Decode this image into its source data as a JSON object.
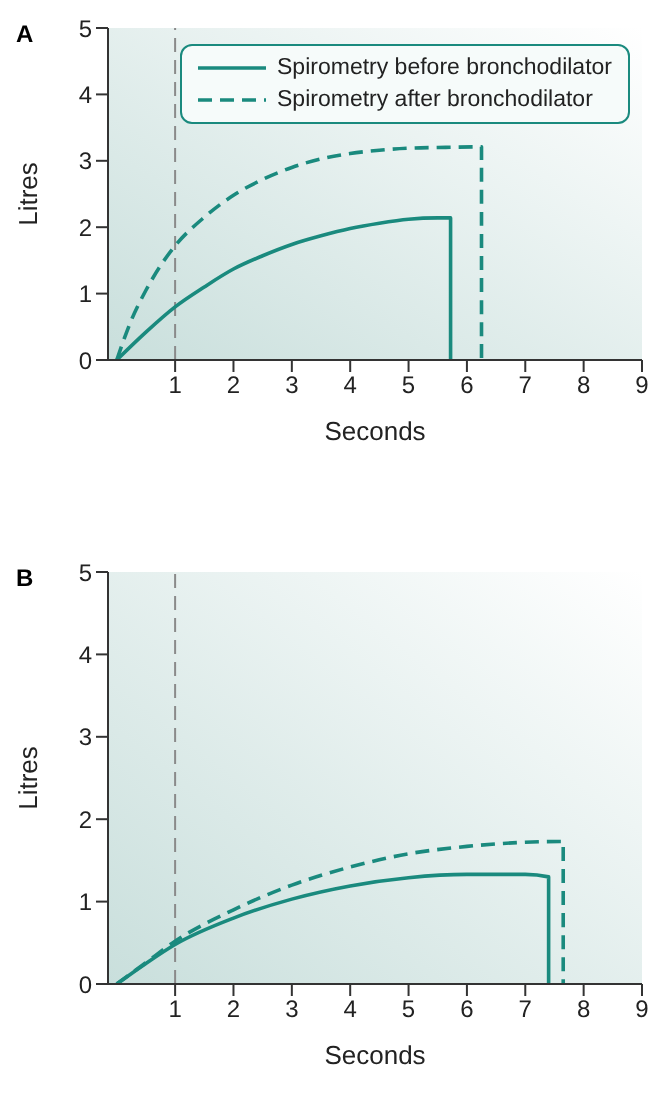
{
  "chart_data": [
    {
      "type": "line",
      "title": "A",
      "xlabel": "Seconds",
      "ylabel": "Litres",
      "xlim": [
        -0.15,
        9
      ],
      "xticks": [
        1,
        2,
        3,
        4,
        5,
        6,
        7,
        8,
        9
      ],
      "ylim": [
        0,
        5
      ],
      "yticks": [
        0,
        1,
        2,
        3,
        4,
        5
      ],
      "grid": false,
      "legend": "top right",
      "marker": "none",
      "ref_lines": [
        {
          "axis": "x",
          "value": 1,
          "color": "#8a8a8a",
          "line_style": "dashed"
        }
      ],
      "series": [
        {
          "name": "Spirometry before bronchodilator",
          "color": "#1a8a7e",
          "line_style": "solid",
          "x": [
            0,
            0.5,
            1,
            1.5,
            2,
            2.5,
            3,
            3.5,
            4,
            4.5,
            5,
            5.5,
            5.72,
            5.72
          ],
          "values": [
            0,
            0.42,
            0.8,
            1.1,
            1.37,
            1.57,
            1.74,
            1.87,
            1.98,
            2.06,
            2.12,
            2.14,
            2.14,
            0
          ]
        },
        {
          "name": "Spirometry after bronchodilator",
          "color": "#1a8a7e",
          "line_style": "dashed",
          "x": [
            0,
            0.25,
            0.5,
            0.75,
            1,
            1.5,
            2,
            2.5,
            3,
            3.5,
            4,
            4.5,
            5,
            5.5,
            6.25,
            6.25
          ],
          "values": [
            0,
            0.6,
            1.05,
            1.42,
            1.72,
            2.15,
            2.48,
            2.72,
            2.9,
            3.03,
            3.11,
            3.16,
            3.19,
            3.2,
            3.21,
            0
          ]
        }
      ]
    },
    {
      "type": "line",
      "title": "B",
      "xlabel": "Seconds",
      "ylabel": "Litres",
      "xlim": [
        -0.15,
        9
      ],
      "xticks": [
        1,
        2,
        3,
        4,
        5,
        6,
        7,
        8,
        9
      ],
      "ylim": [
        0,
        5
      ],
      "yticks": [
        0,
        1,
        2,
        3,
        4,
        5
      ],
      "grid": false,
      "marker": "none",
      "ref_lines": [
        {
          "axis": "x",
          "value": 1,
          "color": "#8a8a8a",
          "line_style": "dashed"
        }
      ],
      "series": [
        {
          "color": "#1a8a7e",
          "line_style": "solid",
          "x": [
            0,
            0.5,
            1,
            2,
            3,
            4,
            5,
            6,
            7,
            7.4,
            7.4
          ],
          "values": [
            0,
            0.25,
            0.48,
            0.8,
            1.03,
            1.19,
            1.29,
            1.33,
            1.33,
            1.3,
            0
          ]
        },
        {
          "color": "#1a8a7e",
          "line_style": "dashed",
          "x": [
            0,
            0.5,
            1,
            2,
            3,
            4,
            5,
            6,
            7,
            7.65,
            7.65
          ],
          "values": [
            0,
            0.26,
            0.52,
            0.9,
            1.2,
            1.42,
            1.58,
            1.67,
            1.72,
            1.73,
            0
          ]
        }
      ]
    }
  ]
}
